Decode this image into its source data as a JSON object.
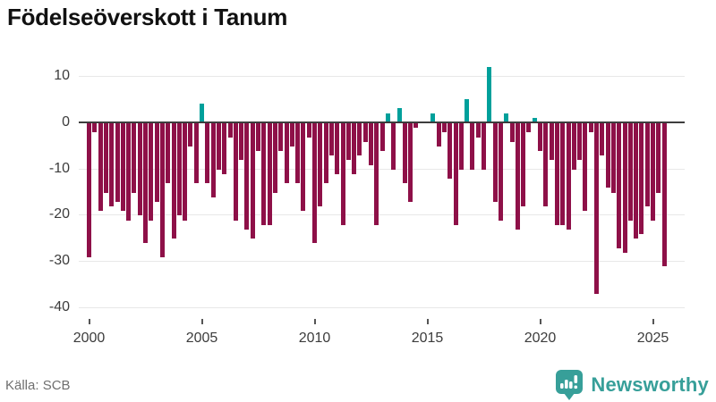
{
  "title": "Födelseöverskott i Tanum",
  "footer": {
    "source": "Källa: SCB",
    "brand": "Newsworthy"
  },
  "chart_data": {
    "type": "bar",
    "title": "Födelseöverskott i Tanum",
    "frequency": "quarterly",
    "start_period": "2000Q1",
    "end_period": "2025Q3",
    "values": [
      -29,
      -2,
      -19,
      -15,
      -18,
      -17,
      -19,
      -21,
      -15,
      -20,
      -26,
      -21,
      -17,
      -29,
      -13,
      -25,
      -20,
      -21,
      -5,
      -13,
      4,
      -13,
      -16,
      -10,
      -11,
      -3,
      -21,
      -8,
      -23,
      -25,
      -6,
      -22,
      -22,
      -15,
      -6,
      -13,
      -5,
      -13,
      -19,
      -3,
      -26,
      -18,
      -13,
      -7,
      -11,
      -22,
      -8,
      -11,
      -7,
      -4,
      -9,
      -22,
      -6,
      2,
      -10,
      3,
      -13,
      -17,
      -1,
      0,
      0,
      2,
      -5,
      -2,
      -12,
      -22,
      -10,
      5,
      -10,
      -3,
      -10,
      12,
      -17,
      -21,
      2,
      -4,
      -23,
      -18,
      -2,
      1,
      -6,
      -18,
      -8,
      -22,
      -22,
      -23,
      -10,
      -8,
      -19,
      -2,
      -37,
      -7,
      -14,
      -15,
      -27,
      -28,
      -21,
      -25,
      -24,
      -18,
      -21,
      -15,
      -31
    ],
    "xlabel": "",
    "ylabel": "",
    "yticks": [
      10,
      0,
      -10,
      -20,
      -30,
      -40
    ],
    "ylim": [
      -42,
      13
    ],
    "xticks": [
      {
        "label": "2000",
        "index": 0
      },
      {
        "label": "2005",
        "index": 20
      },
      {
        "label": "2010",
        "index": 40
      },
      {
        "label": "2015",
        "index": 60
      },
      {
        "label": "2020",
        "index": 80
      },
      {
        "label": "2025",
        "index": 100
      }
    ],
    "grid": "horizontal",
    "legend": "none",
    "colors": {
      "negative_bar": "#8e1048",
      "positive_bar": "#00a09b",
      "zero_line": "#3d3d3d",
      "gridline": "#e8e8e8",
      "brand_teal": "#379f99"
    }
  }
}
